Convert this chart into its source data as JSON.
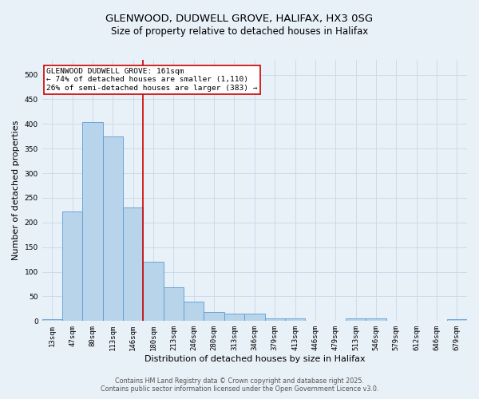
{
  "title_line1": "GLENWOOD, DUDWELL GROVE, HALIFAX, HX3 0SG",
  "title_line2": "Size of property relative to detached houses in Halifax",
  "xlabel": "Distribution of detached houses by size in Halifax",
  "ylabel": "Number of detached properties",
  "bar_labels": [
    "13sqm",
    "47sqm",
    "80sqm",
    "113sqm",
    "146sqm",
    "180sqm",
    "213sqm",
    "246sqm",
    "280sqm",
    "313sqm",
    "346sqm",
    "379sqm",
    "413sqm",
    "446sqm",
    "479sqm",
    "513sqm",
    "546sqm",
    "579sqm",
    "612sqm",
    "646sqm",
    "679sqm"
  ],
  "bar_heights": [
    3,
    222,
    403,
    375,
    230,
    120,
    68,
    40,
    18,
    15,
    15,
    6,
    6,
    1,
    1,
    5,
    5,
    1,
    1,
    1,
    3
  ],
  "bar_color": "#b8d4ea",
  "bar_edge_color": "#5b9bd5",
  "vline_x": 4.5,
  "vline_color": "#cc0000",
  "annotation_text": "GLENWOOD DUDWELL GROVE: 161sqm\n← 74% of detached houses are smaller (1,110)\n26% of semi-detached houses are larger (383) →",
  "annotation_box_color": "#ffffff",
  "annotation_box_edge_color": "#cc0000",
  "ylim": [
    0,
    530
  ],
  "yticks": [
    0,
    50,
    100,
    150,
    200,
    250,
    300,
    350,
    400,
    450,
    500
  ],
  "grid_color": "#c8d8e8",
  "background_color": "#e8f0f8",
  "footer_line1": "Contains HM Land Registry data © Crown copyright and database right 2025.",
  "footer_line2": "Contains public sector information licensed under the Open Government Licence v3.0.",
  "title_fontsize": 9.5,
  "subtitle_fontsize": 8.5,
  "axis_label_fontsize": 8,
  "tick_fontsize": 6.5,
  "annotation_fontsize": 6.8,
  "footer_fontsize": 5.8
}
